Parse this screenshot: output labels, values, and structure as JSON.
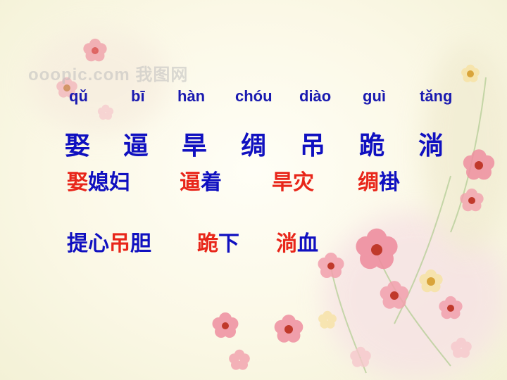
{
  "watermark": {
    "text": "ooopic.com 我图网"
  },
  "pinyin": [
    "qǔ",
    "bī",
    "hàn",
    "chóu",
    "diào",
    "guì",
    "tǎng"
  ],
  "characters": [
    "娶",
    "逼",
    "旱",
    "绸",
    "吊",
    "跪",
    "淌"
  ],
  "words_row1": [
    {
      "red": "娶",
      "blue": "媳妇"
    },
    {
      "red": "逼",
      "blue": "着"
    },
    {
      "red": "旱灾",
      "blue": ""
    },
    {
      "red": "绸",
      "blue": "褂"
    }
  ],
  "words_row2": [
    {
      "blue_pre": "提心",
      "red": "吊",
      "blue": "胆"
    },
    {
      "red": "跪",
      "blue": "下"
    },
    {
      "red": "淌",
      "blue": "血"
    }
  ],
  "colors": {
    "character": "#1010c0",
    "highlight": "#e8261a",
    "pinyin": "#1a1ab0"
  }
}
